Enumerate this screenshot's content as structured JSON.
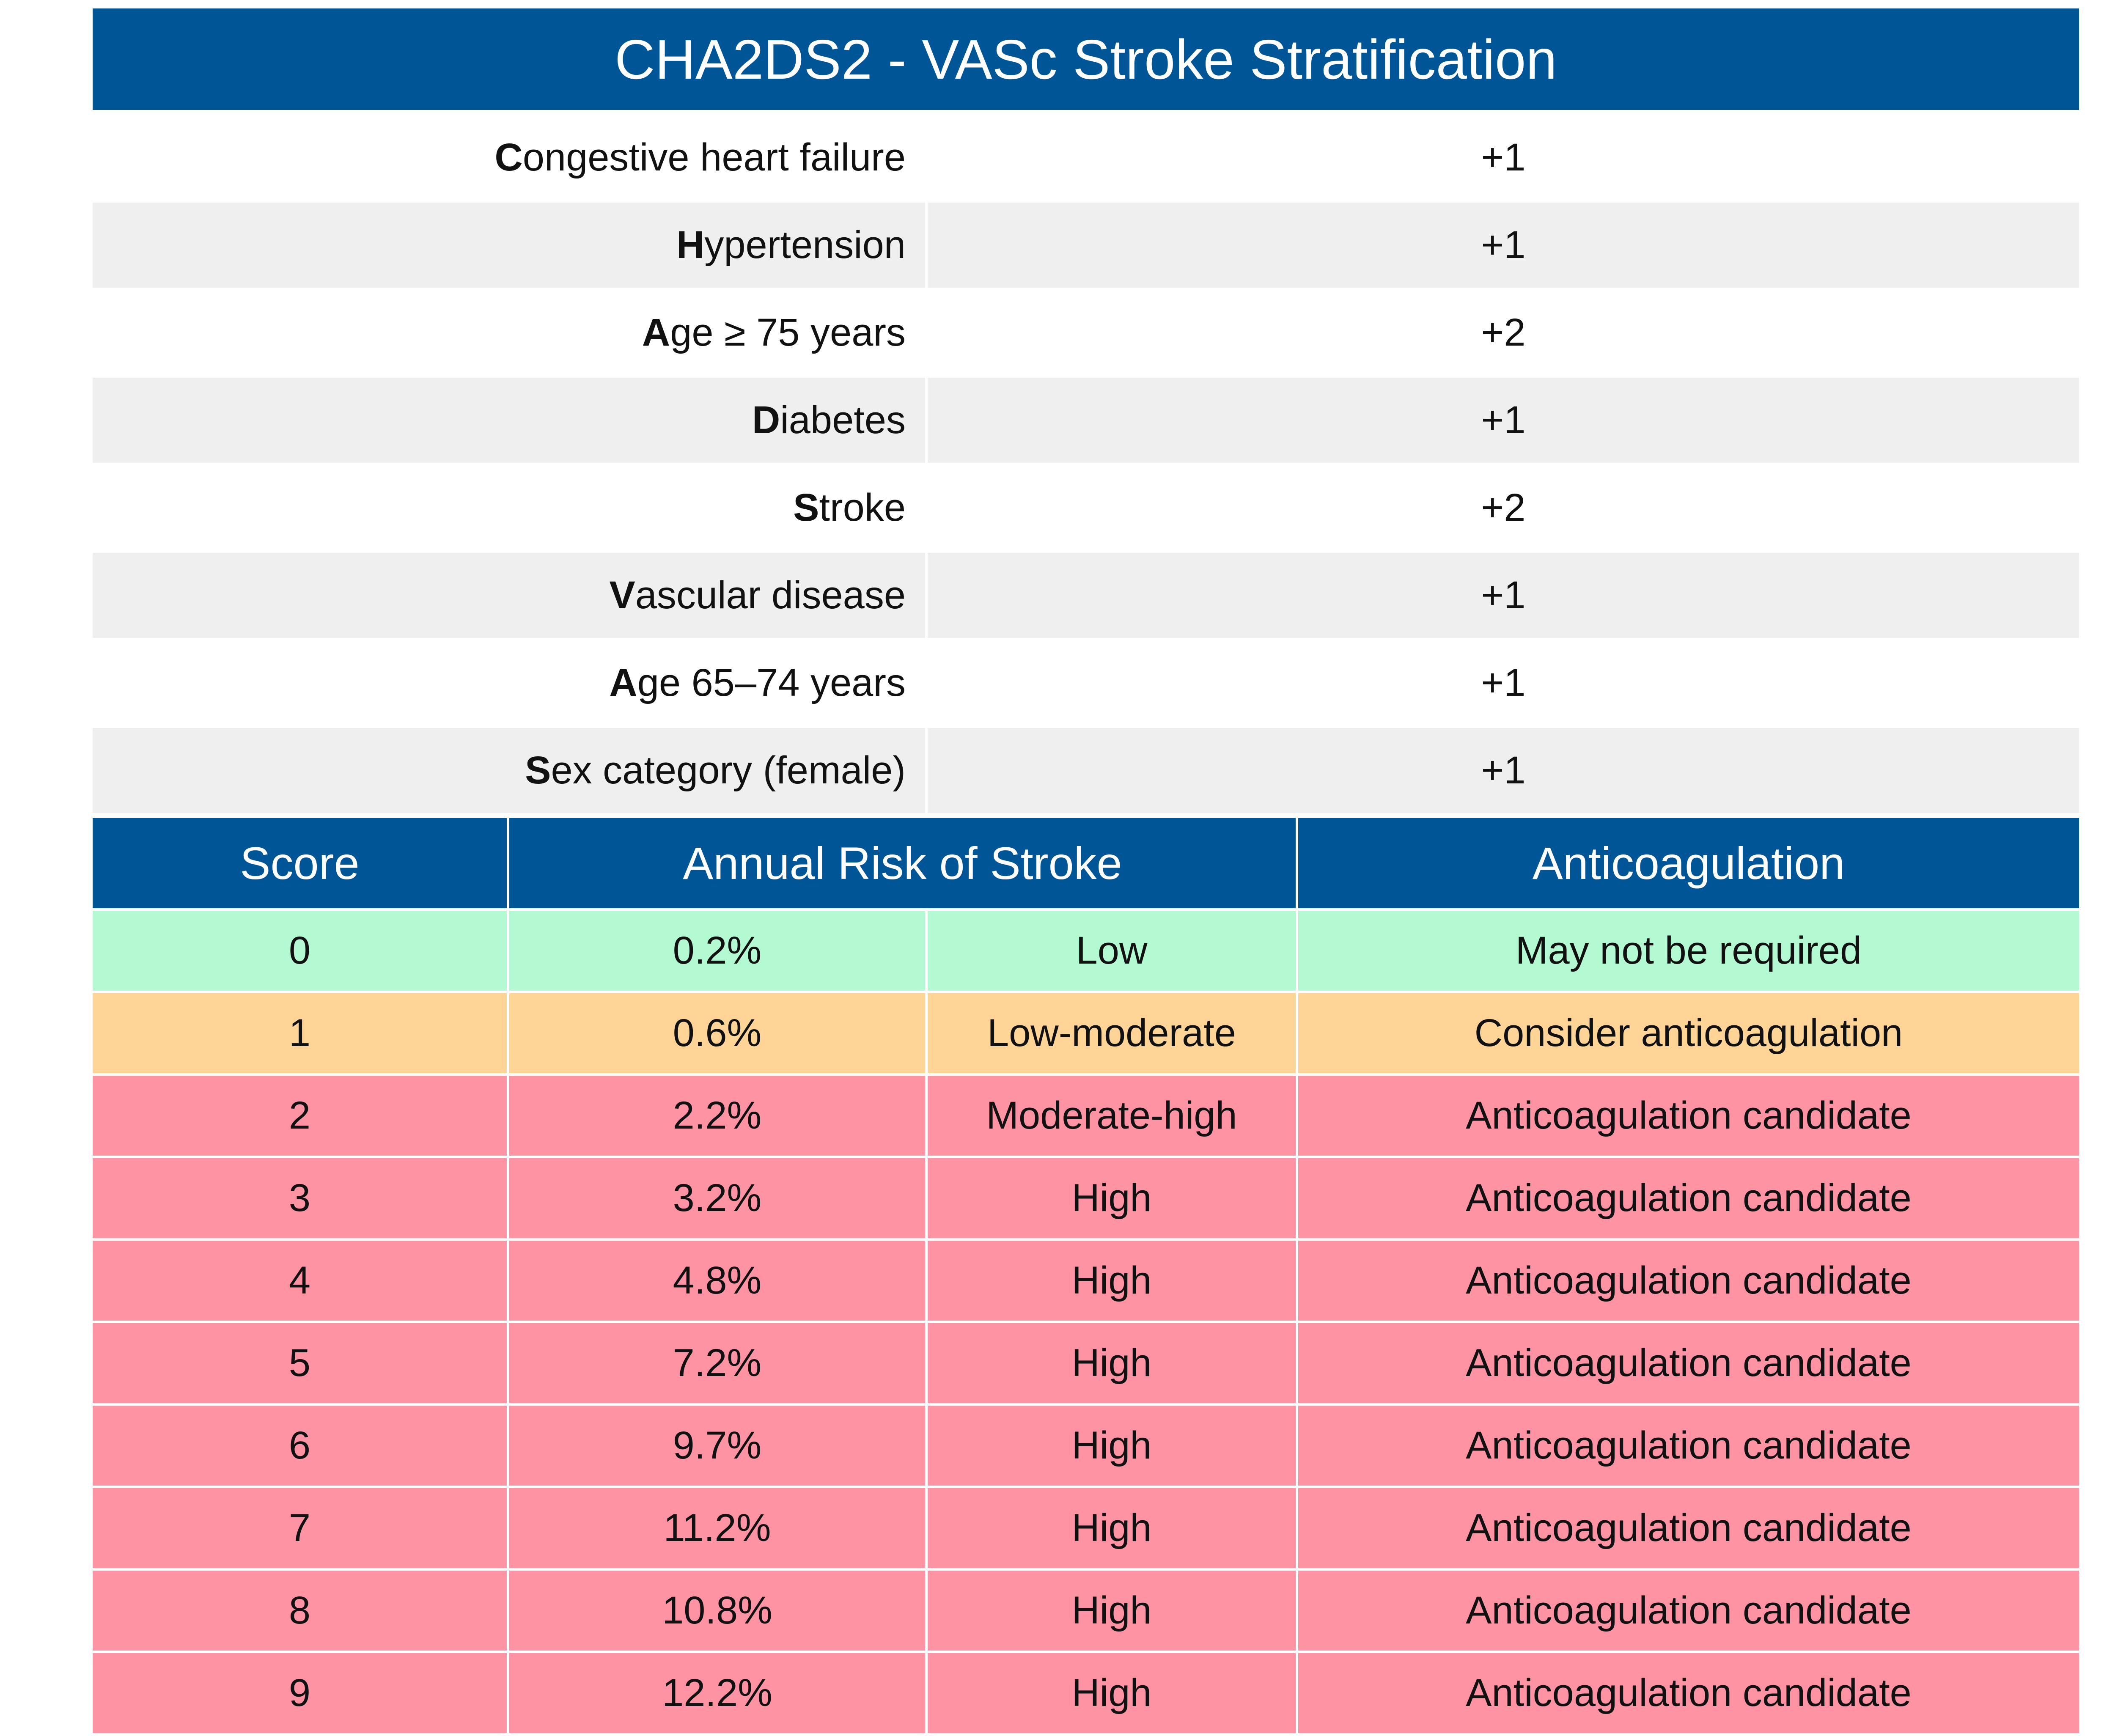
{
  "title": "CHA2DS2 - VASc Stroke Stratification",
  "criteria": [
    {
      "initial": "C",
      "rest": "ongestive heart failure",
      "points": "+1"
    },
    {
      "initial": "H",
      "rest": "ypertension",
      "points": "+1"
    },
    {
      "initial": "A",
      "rest": "ge ≥ 75 years",
      "points": "+2"
    },
    {
      "initial": "D",
      "rest": "iabetes",
      "points": "+1"
    },
    {
      "initial": "S",
      "rest": "troke",
      "points": "+2"
    },
    {
      "initial": "V",
      "rest": "ascular disease",
      "points": "+1"
    },
    {
      "initial": "A",
      "rest": "ge 65–74 years",
      "points": "+1"
    },
    {
      "initial": "S",
      "rest": "ex category (female)",
      "points": "+1"
    }
  ],
  "risk_headers": {
    "score": "Score",
    "annual_risk": "Annual Risk of Stroke",
    "anticoagulation": "Anticoagulation"
  },
  "risk_rows": [
    {
      "score": "0",
      "percent": "0.2%",
      "level": "Low",
      "recommendation": "May not be required",
      "color": "#b3f9d1"
    },
    {
      "score": "1",
      "percent": "0.6%",
      "level": "Low-moderate",
      "recommendation": "Consider anticoagulation",
      "color": "#fed597"
    },
    {
      "score": "2",
      "percent": "2.2%",
      "level": "Moderate-high",
      "recommendation": "Anticoagulation candidate",
      "color": "#fe93a3"
    },
    {
      "score": "3",
      "percent": "3.2%",
      "level": "High",
      "recommendation": "Anticoagulation candidate",
      "color": "#fe93a3"
    },
    {
      "score": "4",
      "percent": "4.8%",
      "level": "High",
      "recommendation": "Anticoagulation candidate",
      "color": "#fe93a3"
    },
    {
      "score": "5",
      "percent": "7.2%",
      "level": "High",
      "recommendation": "Anticoagulation candidate",
      "color": "#fe93a3"
    },
    {
      "score": "6",
      "percent": "9.7%",
      "level": "High",
      "recommendation": "Anticoagulation candidate",
      "color": "#fe93a3"
    },
    {
      "score": "7",
      "percent": "11.2%",
      "level": "High",
      "recommendation": "Anticoagulation candidate",
      "color": "#fe93a3"
    },
    {
      "score": "8",
      "percent": "10.8%",
      "level": "High",
      "recommendation": "Anticoagulation candidate",
      "color": "#fe93a3"
    },
    {
      "score": "9",
      "percent": "12.2%",
      "level": "High",
      "recommendation": "Anticoagulation candidate",
      "color": "#fe93a3"
    }
  ],
  "colors": {
    "header_blue": "#005596",
    "stripe_gray": "#efefef",
    "low_green": "#b3f9d1",
    "lowmod_orange": "#fed597",
    "high_pink": "#fe93a3"
  }
}
